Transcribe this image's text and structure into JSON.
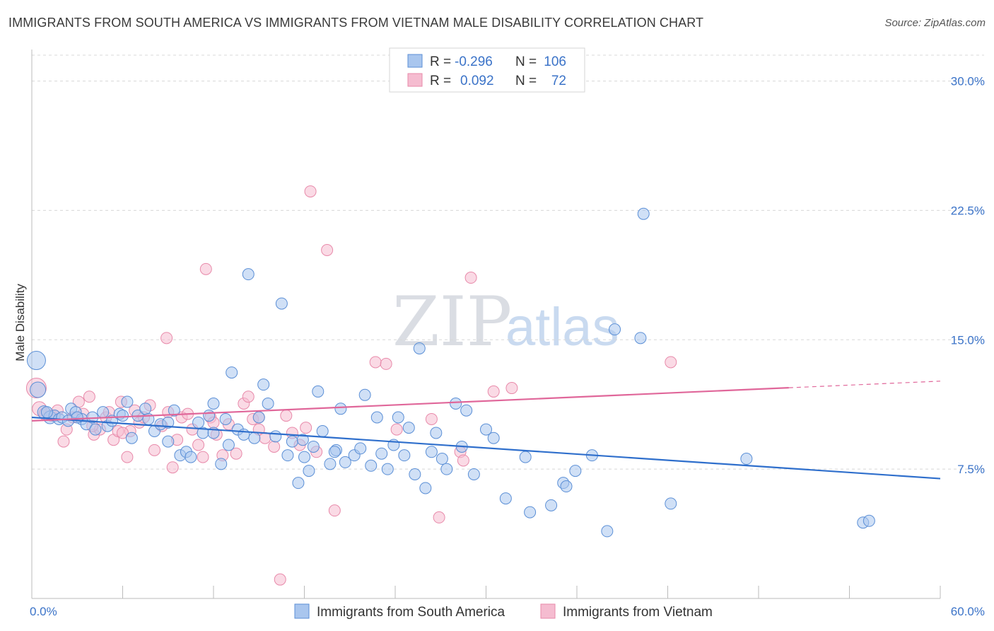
{
  "header": {
    "title": "IMMIGRANTS FROM SOUTH AMERICA VS IMMIGRANTS FROM VIETNAM MALE DISABILITY CORRELATION CHART",
    "source": "Source: ZipAtlas.com"
  },
  "watermark": {
    "zip": "ZIP",
    "atlas": "atlas"
  },
  "colors": {
    "blue_fill": "#a9c6ee",
    "blue_stroke": "#5b8fd6",
    "blue_line": "#2f6fcc",
    "pink_fill": "#f5bcd0",
    "pink_stroke": "#e88aaa",
    "pink_line": "#e0679a",
    "grid": "#d8d8d8",
    "tick_text": "#3b73c8"
  },
  "legend": {
    "rows": [
      {
        "r_label": "R =",
        "r_value": "-0.296",
        "n_label": "N =",
        "n_value": "106"
      },
      {
        "r_label": "R =",
        "r_value": "0.092",
        "n_label": "N =",
        "n_value": "72"
      }
    ]
  },
  "chart_data": {
    "type": "scatter",
    "title": "IMMIGRANTS FROM SOUTH AMERICA VS IMMIGRANTS FROM VIETNAM MALE DISABILITY CORRELATION CHART",
    "xlabel": "",
    "ylabel": "Male Disability",
    "xlim": [
      0,
      60
    ],
    "ylim": [
      0,
      31.5
    ],
    "x_tick_labels": [
      "0.0%",
      "60.0%"
    ],
    "y_ticks": [
      7.5,
      15.0,
      22.5,
      30.0
    ],
    "y_tick_labels": [
      "7.5%",
      "15.0%",
      "22.5%",
      "30.0%"
    ],
    "grid": true,
    "legend_position": "top-center",
    "series": [
      {
        "name": "Immigrants from South America",
        "color": "#a9c6ee",
        "r": -0.296,
        "n": 106,
        "trend": {
          "x": [
            0,
            60
          ],
          "y": [
            10.5,
            6.95
          ]
        },
        "points": [
          [
            0.3,
            13.8,
            13
          ],
          [
            0.4,
            12.1,
            11
          ],
          [
            0.8,
            10.8,
            9
          ],
          [
            1.2,
            10.5,
            9
          ],
          [
            1.5,
            10.6,
            8
          ],
          [
            1.8,
            10.4,
            8
          ],
          [
            2.0,
            10.5,
            8
          ],
          [
            2.4,
            10.3,
            8
          ],
          [
            2.6,
            11.0,
            8
          ],
          [
            2.9,
            10.8,
            8
          ],
          [
            3.3,
            10.4,
            8
          ],
          [
            3.6,
            10.1,
            8
          ],
          [
            4.0,
            10.5,
            8
          ],
          [
            4.2,
            9.8,
            8
          ],
          [
            4.7,
            10.8,
            8
          ],
          [
            5.0,
            10.0,
            8
          ],
          [
            5.3,
            10.3,
            8
          ],
          [
            5.8,
            10.7,
            8
          ],
          [
            6.3,
            11.4,
            8
          ],
          [
            6.6,
            9.3,
            8
          ],
          [
            7.0,
            10.6,
            8
          ],
          [
            7.5,
            11.0,
            8
          ],
          [
            7.7,
            10.4,
            8
          ],
          [
            8.1,
            9.7,
            8
          ],
          [
            8.5,
            10.1,
            8
          ],
          [
            9.0,
            9.1,
            8
          ],
          [
            9.4,
            10.9,
            8
          ],
          [
            9.8,
            8.3,
            8
          ],
          [
            10.2,
            8.5,
            8
          ],
          [
            10.5,
            8.2,
            8
          ],
          [
            11.0,
            10.2,
            8
          ],
          [
            11.3,
            9.6,
            8
          ],
          [
            11.7,
            10.6,
            8
          ],
          [
            12.0,
            11.3,
            8
          ],
          [
            12.5,
            7.8,
            8
          ],
          [
            12.8,
            10.4,
            8
          ],
          [
            13.2,
            13.1,
            8
          ],
          [
            13.6,
            9.8,
            8
          ],
          [
            14.0,
            9.5,
            8
          ],
          [
            14.3,
            18.8,
            8
          ],
          [
            14.7,
            9.3,
            8
          ],
          [
            15.0,
            10.5,
            8
          ],
          [
            15.3,
            12.4,
            8
          ],
          [
            15.6,
            11.3,
            8
          ],
          [
            16.1,
            9.4,
            8
          ],
          [
            16.5,
            17.1,
            8
          ],
          [
            16.9,
            8.3,
            8
          ],
          [
            17.2,
            9.1,
            8
          ],
          [
            17.6,
            6.7,
            8
          ],
          [
            17.9,
            9.2,
            8
          ],
          [
            18.3,
            7.4,
            8
          ],
          [
            18.6,
            8.8,
            8
          ],
          [
            18.9,
            12.0,
            8
          ],
          [
            19.2,
            9.7,
            8
          ],
          [
            19.7,
            7.8,
            8
          ],
          [
            20.1,
            8.6,
            8
          ],
          [
            20.4,
            11.0,
            8
          ],
          [
            20.7,
            7.9,
            8
          ],
          [
            21.3,
            8.3,
            8
          ],
          [
            21.7,
            8.7,
            8
          ],
          [
            22.0,
            11.8,
            8
          ],
          [
            22.4,
            7.7,
            8
          ],
          [
            22.8,
            10.5,
            8
          ],
          [
            23.1,
            8.4,
            8
          ],
          [
            23.5,
            7.5,
            8
          ],
          [
            23.9,
            8.9,
            8
          ],
          [
            24.2,
            10.5,
            8
          ],
          [
            24.6,
            8.3,
            8
          ],
          [
            24.9,
            9.9,
            8
          ],
          [
            25.3,
            7.2,
            8
          ],
          [
            25.6,
            14.5,
            8
          ],
          [
            26.0,
            6.4,
            8
          ],
          [
            26.4,
            8.5,
            8
          ],
          [
            26.7,
            9.6,
            8
          ],
          [
            27.1,
            8.1,
            8
          ],
          [
            27.4,
            7.5,
            8
          ],
          [
            28.0,
            11.3,
            8
          ],
          [
            28.4,
            8.8,
            8
          ],
          [
            28.7,
            10.9,
            8
          ],
          [
            29.2,
            7.2,
            8
          ],
          [
            30.0,
            9.8,
            8
          ],
          [
            30.5,
            9.3,
            8
          ],
          [
            31.3,
            5.8,
            8
          ],
          [
            32.6,
            8.2,
            8
          ],
          [
            32.9,
            5.0,
            8
          ],
          [
            35.1,
            6.7,
            8
          ],
          [
            35.3,
            6.5,
            8
          ],
          [
            35.9,
            7.4,
            8
          ],
          [
            34.3,
            5.4,
            8
          ],
          [
            37.0,
            8.3,
            8
          ],
          [
            38.0,
            3.9,
            8
          ],
          [
            38.5,
            15.6,
            8
          ],
          [
            40.2,
            15.1,
            8
          ],
          [
            40.4,
            22.3,
            8
          ],
          [
            42.2,
            5.5,
            8
          ],
          [
            47.2,
            8.1,
            8
          ],
          [
            54.9,
            4.4,
            8
          ],
          [
            55.3,
            4.5,
            8
          ],
          [
            1.0,
            10.8,
            8
          ],
          [
            3.0,
            10.5,
            8
          ],
          [
            6.0,
            10.6,
            8
          ],
          [
            12.0,
            9.6,
            8
          ],
          [
            20.0,
            8.5,
            8
          ],
          [
            9.0,
            10.2,
            8
          ],
          [
            13.0,
            8.9,
            8
          ],
          [
            18.0,
            8.2,
            8
          ]
        ]
      },
      {
        "name": "Immigrants from Vietnam",
        "color": "#f5bcd0",
        "r": 0.092,
        "n": 72,
        "trend": {
          "x": [
            0,
            60
          ],
          "y": [
            10.3,
            12.6
          ],
          "solid_until": 50
        },
        "points": [
          [
            0.3,
            12.2,
            14
          ],
          [
            0.5,
            11.0,
            10
          ],
          [
            0.9,
            10.7,
            9
          ],
          [
            1.3,
            10.6,
            8
          ],
          [
            1.7,
            10.9,
            8
          ],
          [
            2.1,
            9.1,
            8
          ],
          [
            2.3,
            9.8,
            8
          ],
          [
            2.7,
            10.5,
            8
          ],
          [
            3.1,
            11.4,
            8
          ],
          [
            3.4,
            10.7,
            8
          ],
          [
            3.8,
            11.7,
            8
          ],
          [
            4.1,
            9.5,
            8
          ],
          [
            4.5,
            9.8,
            8
          ],
          [
            4.9,
            10.5,
            8
          ],
          [
            5.1,
            10.8,
            8
          ],
          [
            5.4,
            9.2,
            8
          ],
          [
            5.7,
            9.7,
            8
          ],
          [
            5.9,
            11.4,
            8
          ],
          [
            6.3,
            8.2,
            8
          ],
          [
            6.5,
            9.7,
            8
          ],
          [
            6.8,
            10.9,
            8
          ],
          [
            7.1,
            10.2,
            8
          ],
          [
            7.4,
            10.5,
            8
          ],
          [
            7.8,
            11.2,
            8
          ],
          [
            8.1,
            8.6,
            8
          ],
          [
            8.6,
            10.0,
            8
          ],
          [
            8.9,
            15.1,
            8
          ],
          [
            9.3,
            7.6,
            8
          ],
          [
            9.6,
            9.2,
            8
          ],
          [
            9.9,
            10.5,
            8
          ],
          [
            10.3,
            10.7,
            8
          ],
          [
            10.6,
            9.8,
            8
          ],
          [
            11.0,
            8.9,
            8
          ],
          [
            11.3,
            8.2,
            8
          ],
          [
            11.5,
            19.1,
            8
          ],
          [
            11.8,
            10.5,
            8
          ],
          [
            12.2,
            9.5,
            8
          ],
          [
            12.6,
            8.3,
            8
          ],
          [
            13.0,
            10.1,
            8
          ],
          [
            13.5,
            8.4,
            8
          ],
          [
            14.0,
            11.3,
            8
          ],
          [
            14.3,
            11.7,
            8
          ],
          [
            14.6,
            10.4,
            8
          ],
          [
            15.0,
            9.8,
            8
          ],
          [
            15.4,
            9.3,
            8
          ],
          [
            16.0,
            8.8,
            8
          ],
          [
            16.4,
            1.1,
            8
          ],
          [
            16.8,
            10.6,
            8
          ],
          [
            17.2,
            9.6,
            8
          ],
          [
            17.7,
            8.9,
            8
          ],
          [
            18.1,
            9.9,
            8
          ],
          [
            18.4,
            23.6,
            8
          ],
          [
            18.8,
            8.5,
            8
          ],
          [
            19.5,
            20.2,
            8
          ],
          [
            20.0,
            5.1,
            8
          ],
          [
            22.7,
            13.7,
            8
          ],
          [
            23.4,
            13.6,
            8
          ],
          [
            24.1,
            9.8,
            8
          ],
          [
            26.4,
            10.4,
            8
          ],
          [
            26.9,
            4.7,
            8
          ],
          [
            28.3,
            8.5,
            8
          ],
          [
            28.5,
            8.0,
            8
          ],
          [
            29.0,
            18.6,
            8
          ],
          [
            30.5,
            12.0,
            8
          ],
          [
            31.7,
            12.2,
            8
          ],
          [
            42.2,
            13.7,
            8
          ],
          [
            1.5,
            10.6,
            8
          ],
          [
            4.0,
            10.0,
            8
          ],
          [
            6.0,
            9.6,
            8
          ],
          [
            9.0,
            10.8,
            8
          ],
          [
            12.0,
            10.2,
            8
          ],
          [
            15.0,
            10.5,
            8
          ]
        ]
      }
    ]
  },
  "bottom_legend": {
    "items": [
      {
        "label": "Immigrants from South America"
      },
      {
        "label": "Immigrants from Vietnam"
      }
    ]
  }
}
